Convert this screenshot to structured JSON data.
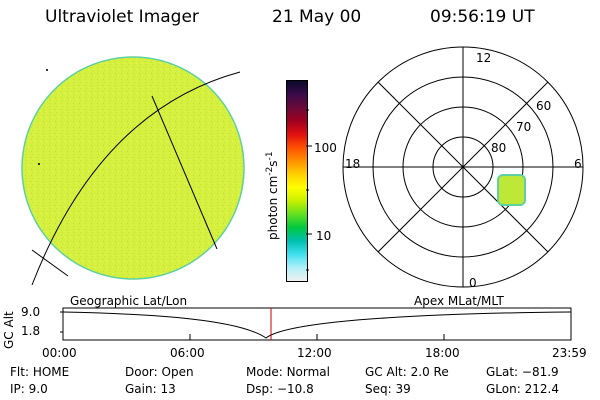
{
  "header": {
    "instrument": "Ultraviolet Imager",
    "date": "21 May 00",
    "time": "09:56:19 UT"
  },
  "colorbar": {
    "unit": "photon cm",
    "unit_exp1": "-2",
    "unit_s": "s",
    "unit_exp2": "-1",
    "ticks": [
      "100",
      "10"
    ],
    "colors": [
      "#0a0a2a",
      "#3a0a4a",
      "#6a0a3a",
      "#a00020",
      "#e01010",
      "#ff5000",
      "#ff9000",
      "#ffd000",
      "#ffff00",
      "#c8f000",
      "#60e020",
      "#00c840",
      "#00c0b0",
      "#40e0f0",
      "#b0f0f8",
      "#f0f0f0"
    ]
  },
  "polar": {
    "mlt_labels": {
      "top": "12",
      "left": "18",
      "right": "6",
      "bottom": "0"
    },
    "lat_labels": [
      "60",
      "70",
      "80"
    ]
  },
  "strip": {
    "ylabel": "GC Alt",
    "yticks": [
      "9.0",
      "1.8"
    ],
    "left_label": "Geographic Lat/Lon",
    "right_label": "Apex MLat/MLT",
    "time_ticks": [
      "00:00",
      "06:00",
      "12:00",
      "18:00",
      "23:59"
    ]
  },
  "status": {
    "flt_label": "Flt:",
    "flt_value": "HOME",
    "ip_label": "IP:",
    "ip_value": "9.0",
    "door_label": "Door:",
    "door_value": "Open",
    "gain_label": "Gain:",
    "gain_value": "13",
    "mode_label": "Mode:",
    "mode_value": "Normal",
    "dsp_label": "Dsp:",
    "dsp_value": "−10.8",
    "gcalt_label": "GC Alt:",
    "gcalt_value": "2.0 Re",
    "seq_label": "Seq:",
    "seq_value": "39",
    "glat_label": "GLat:",
    "glat_value": "−81.9",
    "glon_label": "GLon:",
    "glon_value": "212.4"
  },
  "colors": {
    "earth_fill": "#d6f040",
    "earth_edge": "#60d0a0",
    "patch_fill": "#bde838",
    "cursor": "#cc0000"
  }
}
